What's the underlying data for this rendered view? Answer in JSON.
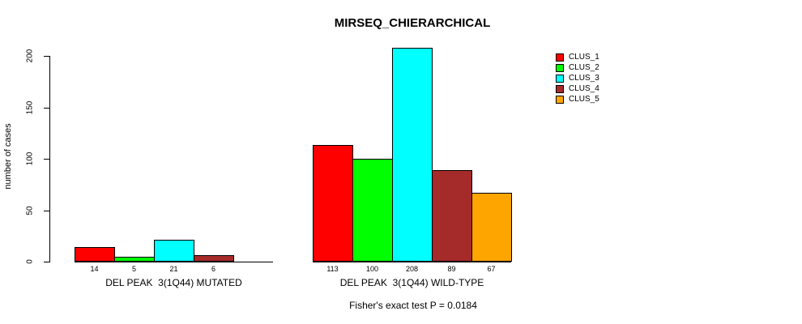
{
  "figure": {
    "title": "MIRSEQ_CHIERARCHICAL",
    "footnote": "Fisher's exact test P = 0.0184",
    "background_color": "#FFFFFF",
    "text_color": "#000000"
  },
  "chart_data": {
    "type": "bar",
    "title": "MIRSEQ_CHIERARCHICAL",
    "xlabel": "",
    "ylabel": "number of cases",
    "ylim": [
      0,
      200
    ],
    "yticks": [
      0,
      50,
      100,
      150,
      200
    ],
    "grid": false,
    "bar_outline_color": "#000000",
    "legend": {
      "position": "top-right",
      "entries": [
        {
          "label": "CLUS_1",
          "color": "#FF0000"
        },
        {
          "label": "CLUS_2",
          "color": "#00FF00"
        },
        {
          "label": "CLUS_3",
          "color": "#00FFFF"
        },
        {
          "label": "CLUS_4",
          "color": "#A52A2A"
        },
        {
          "label": "CLUS_5",
          "color": "#FFA500"
        }
      ]
    },
    "groups": [
      {
        "label": "DEL PEAK  3(1Q44) MUTATED",
        "slots": 5,
        "bars": [
          {
            "cluster": "CLUS_1",
            "value": 14,
            "value_label": "14"
          },
          {
            "cluster": "CLUS_2",
            "value": 5,
            "value_label": "5"
          },
          {
            "cluster": "CLUS_3",
            "value": 21,
            "value_label": "21"
          },
          {
            "cluster": "CLUS_4",
            "value": 6,
            "value_label": "6"
          }
        ]
      },
      {
        "label": "DEL PEAK  3(1Q44) WILD-TYPE",
        "slots": 5,
        "bars": [
          {
            "cluster": "CLUS_1",
            "value": 113,
            "value_label": "113"
          },
          {
            "cluster": "CLUS_2",
            "value": 100,
            "value_label": "100"
          },
          {
            "cluster": "CLUS_3",
            "value": 208,
            "value_label": "208"
          },
          {
            "cluster": "CLUS_4",
            "value": 89,
            "value_label": "89"
          },
          {
            "cluster": "CLUS_5",
            "value": 67,
            "value_label": "67"
          }
        ]
      }
    ],
    "annotation": "Fisher's exact test P = 0.0184"
  }
}
